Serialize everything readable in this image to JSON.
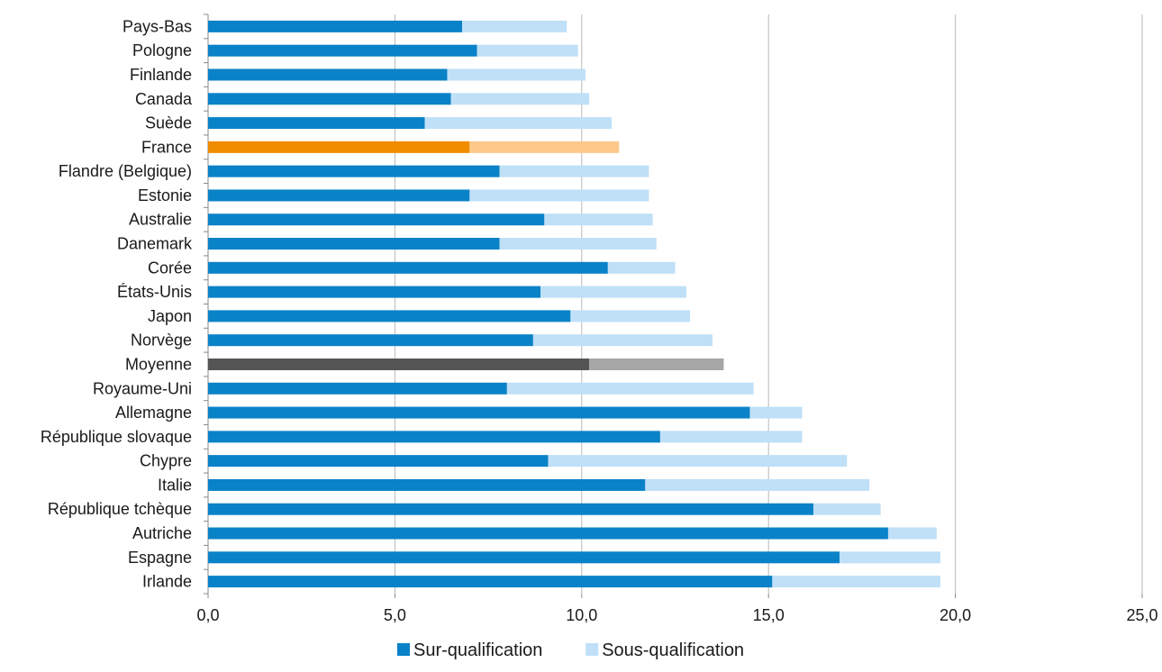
{
  "chart_data": {
    "type": "bar",
    "orientation": "horizontal",
    "stacked": true,
    "title": "",
    "xlabel": "",
    "ylabel": "",
    "xlim": [
      0,
      25
    ],
    "x_ticks": [
      "0,0",
      "5,0",
      "10,0",
      "15,0",
      "20,0",
      "25,0"
    ],
    "grid": "vertical",
    "legend_position": "bottom",
    "categories": [
      "Pays-Bas",
      "Pologne",
      "Finlande",
      "Canada",
      "Suède",
      "France",
      "Flandre (Belgique)",
      "Estonie",
      "Australie",
      "Danemark",
      "Corée",
      "États-Unis",
      "Japon",
      "Norvège",
      "Moyenne",
      "Royaume-Uni",
      "Allemagne",
      "République slovaque",
      "Chypre",
      "Italie",
      "République tchèque",
      "Autriche",
      "Espagne",
      "Irlande"
    ],
    "series": [
      {
        "name": "Sur-qualification",
        "color": "#0a82c8",
        "values": [
          6.8,
          7.2,
          6.4,
          6.5,
          5.8,
          7.0,
          7.8,
          7.0,
          9.0,
          7.8,
          10.7,
          8.9,
          9.7,
          8.7,
          10.2,
          8.0,
          14.5,
          12.1,
          9.1,
          11.7,
          16.2,
          18.2,
          16.9,
          15.1
        ]
      },
      {
        "name": "Sous-qualification",
        "color": "#bfe0f7",
        "values": [
          2.8,
          2.7,
          3.7,
          3.7,
          5.0,
          4.0,
          4.0,
          4.8,
          2.9,
          4.2,
          1.8,
          3.9,
          3.2,
          4.8,
          3.6,
          6.6,
          1.4,
          3.8,
          8.0,
          6.0,
          1.8,
          1.3,
          2.7,
          4.5
        ]
      }
    ],
    "highlights": {
      "France": {
        "colors": [
          "#f08c00",
          "#fdc98b"
        ]
      },
      "Moyenne": {
        "colors": [
          "#555555",
          "#a6a6a6"
        ]
      }
    }
  }
}
